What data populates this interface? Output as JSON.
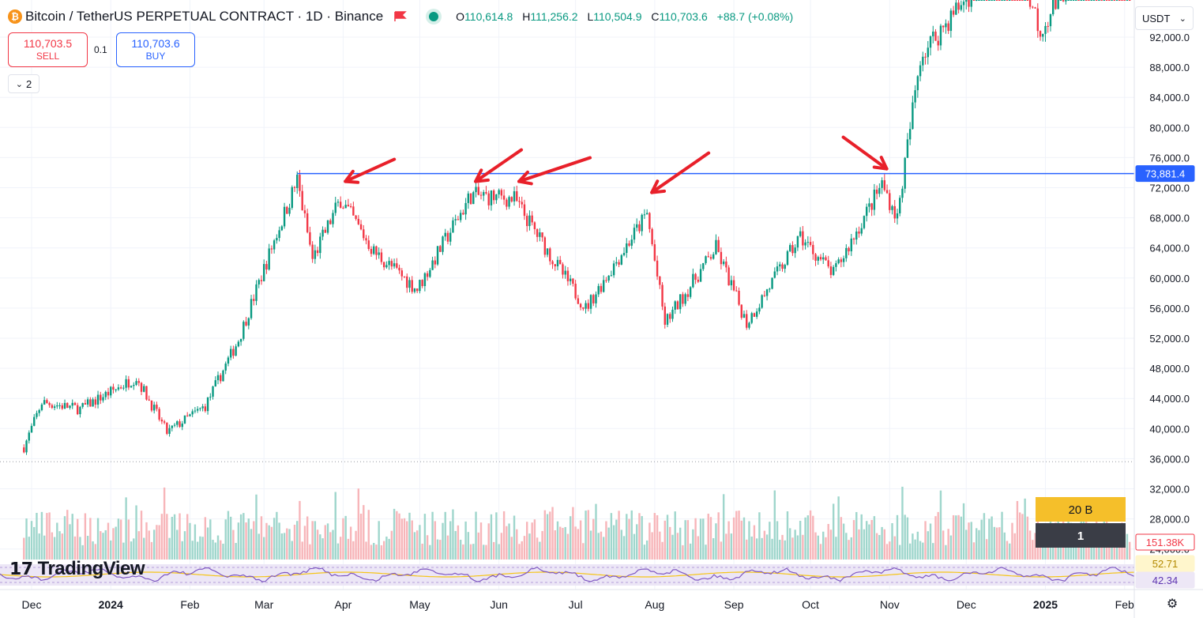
{
  "header": {
    "coin_symbol": "₿",
    "title": "Bitcoin / TetherUS PERPETUAL CONTRACT · 1D · Binance",
    "open_label": "O",
    "open": "110,614.8",
    "high_label": "H",
    "high": "111,256.2",
    "low_label": "L",
    "low": "110,504.9",
    "close_label": "C",
    "close": "110,703.6",
    "change": "+88.7 (+0.08%)"
  },
  "trade": {
    "sell_price": "110,703.5",
    "sell_label": "SELL",
    "buy_price": "110,703.6",
    "buy_label": "BUY",
    "spread": "0.1"
  },
  "indicators_count": "2",
  "currency": "USDT",
  "logo_text": "TradingView",
  "colors": {
    "up": "#089981",
    "down": "#f23645",
    "line": "#2962ff",
    "volume_up": "#9fd6cc",
    "volume_down": "#f7b5b9",
    "rsi_line": "#7e57c2",
    "rsi_ma": "#f5c518"
  },
  "chart_data": {
    "type": "candlestick",
    "y_axis": {
      "min": 24000,
      "max": 94000,
      "ticks": [
        92000,
        88000,
        84000,
        80000,
        76000,
        72000,
        68000,
        64000,
        60000,
        56000,
        52000,
        48000,
        44000,
        40000,
        36000,
        32000,
        28000,
        24000
      ]
    },
    "x_axis_labels": [
      "Dec",
      "2024",
      "Feb",
      "Mar",
      "Apr",
      "May",
      "Jun",
      "Jul",
      "Aug",
      "Sep",
      "Oct",
      "Nov",
      "Dec",
      "2025",
      "Feb"
    ],
    "resistance": {
      "value": 73881.4,
      "label": "73,881.4",
      "from": "2024-03-14"
    },
    "dotted_level": 35600,
    "monthly_path": [
      {
        "date": "2023-11-28",
        "price": 37500
      },
      {
        "date": "2023-12-05",
        "price": 43500
      },
      {
        "date": "2023-12-20",
        "price": 42600
      },
      {
        "date": "2024-01-11",
        "price": 46800
      },
      {
        "date": "2024-01-23",
        "price": 39500
      },
      {
        "date": "2024-02-07",
        "price": 43000
      },
      {
        "date": "2024-02-20",
        "price": 51800
      },
      {
        "date": "2024-03-05",
        "price": 65000
      },
      {
        "date": "2024-03-14",
        "price": 73000
      },
      {
        "date": "2024-03-20",
        "price": 62500
      },
      {
        "date": "2024-03-31",
        "price": 70500
      },
      {
        "date": "2024-04-13",
        "price": 63500
      },
      {
        "date": "2024-04-30",
        "price": 58500
      },
      {
        "date": "2024-05-21",
        "price": 71000
      },
      {
        "date": "2024-06-07",
        "price": 70500
      },
      {
        "date": "2024-06-25",
        "price": 61000
      },
      {
        "date": "2024-07-05",
        "price": 56000
      },
      {
        "date": "2024-07-29",
        "price": 68500
      },
      {
        "date": "2024-08-05",
        "price": 54000
      },
      {
        "date": "2024-08-25",
        "price": 64000
      },
      {
        "date": "2024-09-06",
        "price": 54000
      },
      {
        "date": "2024-09-27",
        "price": 65500
      },
      {
        "date": "2024-10-10",
        "price": 60500
      },
      {
        "date": "2024-10-29",
        "price": 72500
      },
      {
        "date": "2024-11-04",
        "price": 68000
      },
      {
        "date": "2024-11-13",
        "price": 89500
      },
      {
        "date": "2024-12-05",
        "price": 99000
      },
      {
        "date": "2024-12-17",
        "price": 106000
      },
      {
        "date": "2024-12-30",
        "price": 93000
      },
      {
        "date": "2025-01-20",
        "price": 105000
      },
      {
        "date": "2025-02-03",
        "price": 97500
      }
    ],
    "volume_axis_label": "151.38K",
    "rsi_values": {
      "rsi": "42.34",
      "rsi_ma": "52.71"
    },
    "arrows_pointing_to": [
      "2024-03-31",
      "2024-05-21",
      "2024-06-07",
      "2024-07-29",
      "2024-10-29"
    ]
  },
  "countdown": {
    "top": "20 B",
    "bottom": "1"
  }
}
